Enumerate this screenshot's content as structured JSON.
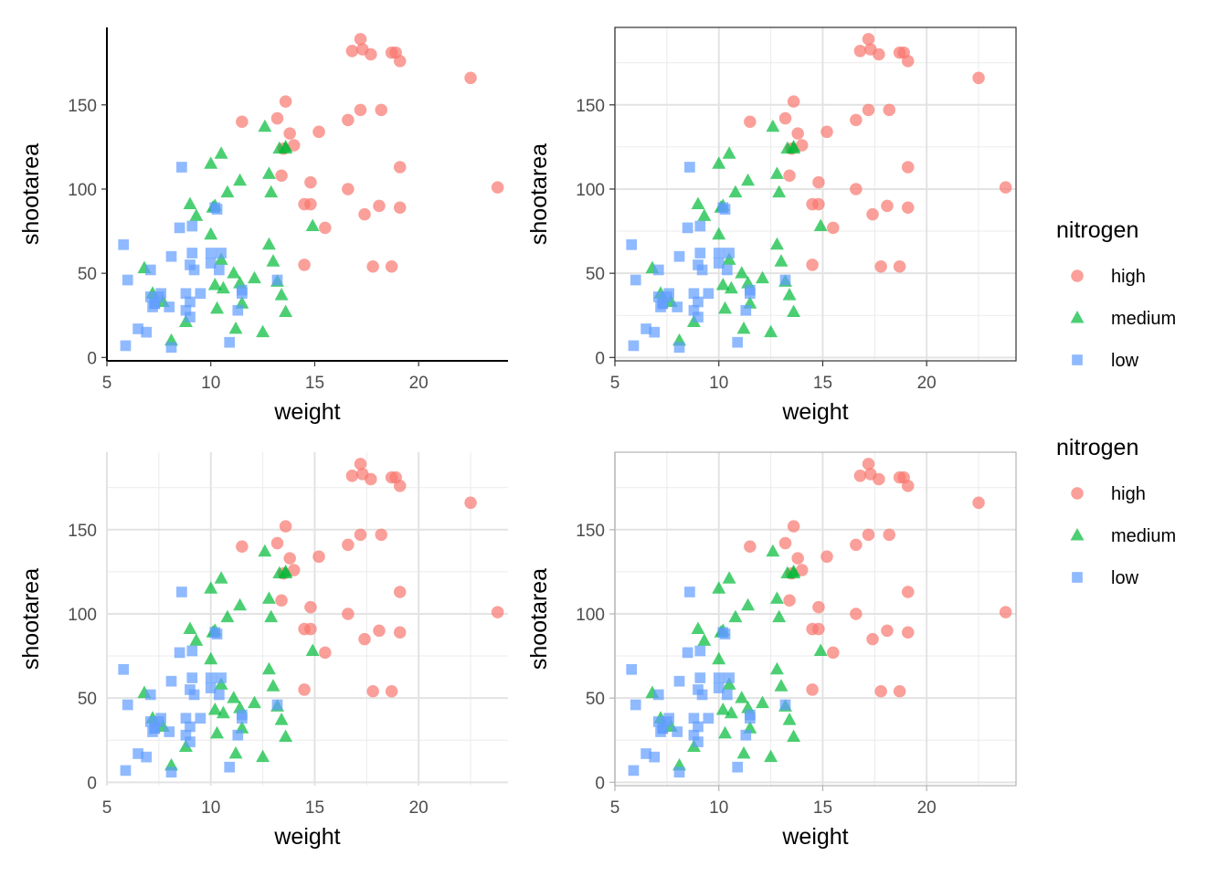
{
  "chart_data": {
    "type": "scatter",
    "title": "",
    "xlabel": "weight",
    "ylabel": "shootarea",
    "xlim": [
      5,
      24.3
    ],
    "ylim": [
      -2,
      196
    ],
    "xticks": [
      5,
      10,
      15,
      20
    ],
    "yticks": [
      0,
      50,
      100,
      150
    ],
    "xtick_labels": [
      "5",
      "10",
      "15",
      "20"
    ],
    "ytick_labels": [
      "0",
      "50",
      "100",
      "150"
    ],
    "legend": {
      "title": "nitrogen",
      "entries": [
        {
          "label": "high",
          "shape": "circle",
          "color": "#F8766D"
        },
        {
          "label": "medium",
          "shape": "triangle",
          "color": "#00BA38"
        },
        {
          "label": "low",
          "shape": "square",
          "color": "#619CFF"
        }
      ]
    },
    "series": [
      {
        "name": "high",
        "shape": "circle",
        "color": "#F8766D",
        "points": [
          [
            11.5,
            140
          ],
          [
            13.2,
            142
          ],
          [
            13.6,
            152
          ],
          [
            13.8,
            133
          ],
          [
            14.0,
            126
          ],
          [
            13.5,
            124
          ],
          [
            15.2,
            134
          ],
          [
            13.4,
            108
          ],
          [
            14.5,
            91
          ],
          [
            14.8,
            91
          ],
          [
            14.8,
            104
          ],
          [
            15.5,
            77
          ],
          [
            14.5,
            55
          ],
          [
            16.6,
            141
          ],
          [
            17.2,
            147
          ],
          [
            18.2,
            147
          ],
          [
            16.8,
            182
          ],
          [
            17.2,
            189
          ],
          [
            17.3,
            183
          ],
          [
            17.7,
            180
          ],
          [
            18.7,
            181
          ],
          [
            18.9,
            181
          ],
          [
            19.1,
            176
          ],
          [
            22.5,
            166
          ],
          [
            16.6,
            100
          ],
          [
            17.4,
            85
          ],
          [
            18.1,
            90
          ],
          [
            19.1,
            89
          ],
          [
            19.1,
            113
          ],
          [
            23.8,
            101
          ],
          [
            17.8,
            54
          ],
          [
            18.7,
            54
          ]
        ]
      },
      {
        "name": "medium",
        "shape": "triangle",
        "color": "#00BA38",
        "points": [
          [
            8.8,
            21
          ],
          [
            8.1,
            10
          ],
          [
            7.7,
            33
          ],
          [
            7.2,
            38
          ],
          [
            6.8,
            53
          ],
          [
            9.0,
            91
          ],
          [
            9.3,
            84
          ],
          [
            10.0,
            115
          ],
          [
            10.2,
            90
          ],
          [
            10.1,
            89
          ],
          [
            10.0,
            73
          ],
          [
            10.5,
            121
          ],
          [
            10.8,
            98
          ],
          [
            11.4,
            105
          ],
          [
            10.5,
            58
          ],
          [
            10.2,
            43
          ],
          [
            10.3,
            29
          ],
          [
            10.6,
            41
          ],
          [
            11.1,
            50
          ],
          [
            11.4,
            44
          ],
          [
            11.5,
            32
          ],
          [
            11.2,
            17
          ],
          [
            12.1,
            47
          ],
          [
            12.5,
            15
          ],
          [
            12.6,
            137
          ],
          [
            12.8,
            109
          ],
          [
            12.9,
            98
          ],
          [
            12.8,
            67
          ],
          [
            13.0,
            57
          ],
          [
            13.3,
            124
          ],
          [
            13.6,
            125
          ],
          [
            13.6,
            124
          ],
          [
            13.2,
            45
          ],
          [
            13.4,
            37
          ],
          [
            13.6,
            27
          ],
          [
            14.9,
            78
          ]
        ]
      },
      {
        "name": "low",
        "shape": "square",
        "color": "#619CFF",
        "points": [
          [
            5.8,
            67
          ],
          [
            6.0,
            46
          ],
          [
            5.9,
            7
          ],
          [
            6.5,
            17
          ],
          [
            6.9,
            15
          ],
          [
            7.1,
            36
          ],
          [
            7.1,
            52
          ],
          [
            7.2,
            30
          ],
          [
            7.3,
            32
          ],
          [
            7.5,
            36
          ],
          [
            7.6,
            38
          ],
          [
            7.3,
            32
          ],
          [
            8.0,
            30
          ],
          [
            8.1,
            60
          ],
          [
            8.1,
            6
          ],
          [
            8.5,
            77
          ],
          [
            8.6,
            113
          ],
          [
            8.8,
            38
          ],
          [
            8.8,
            28
          ],
          [
            9.0,
            24
          ],
          [
            9.0,
            33
          ],
          [
            9.1,
            78
          ],
          [
            9.0,
            55
          ],
          [
            9.1,
            62
          ],
          [
            9.2,
            52
          ],
          [
            9.5,
            38
          ],
          [
            10.0,
            62
          ],
          [
            10.0,
            56
          ],
          [
            10.2,
            89
          ],
          [
            10.3,
            88
          ],
          [
            10.5,
            62
          ],
          [
            10.4,
            52
          ],
          [
            10.9,
            9
          ],
          [
            11.3,
            28
          ],
          [
            11.5,
            38
          ],
          [
            11.5,
            40
          ],
          [
            13.2,
            46
          ]
        ]
      }
    ]
  }
}
